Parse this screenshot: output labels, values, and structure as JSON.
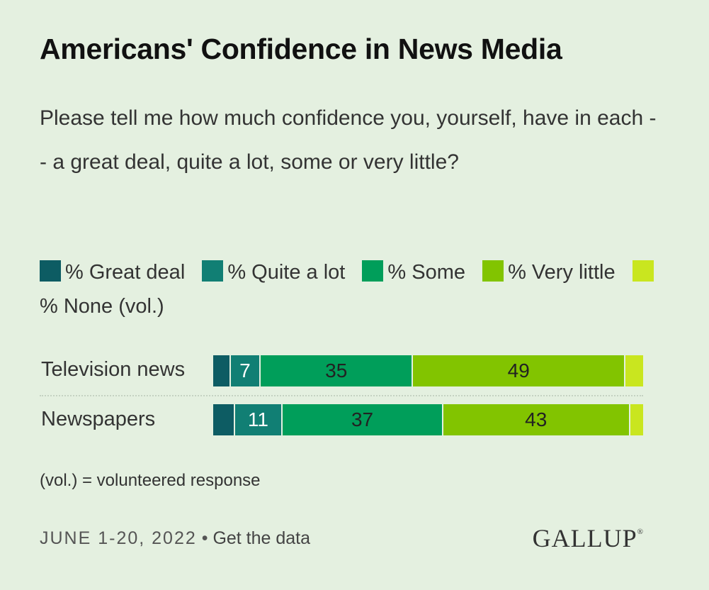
{
  "title": "Americans' Confidence in News Media",
  "subtitle": "Please tell me how much confidence you, yourself, have in each -- a great deal, quite a lot, some or very little?",
  "footnote": "(vol.) = volunteered response",
  "footer": {
    "date": "JUNE 1-20, 2022",
    "separator": " • ",
    "link": "Get the data",
    "brand": "GALLUP",
    "brand_mark": "®"
  },
  "chart_data": {
    "type": "bar",
    "orientation": "horizontal",
    "stacked": true,
    "categories": [
      "Television news",
      "Newspapers"
    ],
    "series": [
      {
        "name": "% Great deal",
        "color": "#0d5c63",
        "values": [
          4,
          5
        ],
        "labels": [
          "",
          ""
        ]
      },
      {
        "name": "% Quite a lot",
        "color": "#117f74",
        "values": [
          7,
          11
        ],
        "labels": [
          "7",
          "11"
        ]
      },
      {
        "name": "% Some",
        "color": "#009e5a",
        "values": [
          35,
          37
        ],
        "labels": [
          "35",
          "37"
        ]
      },
      {
        "name": "% Very little",
        "color": "#82c400",
        "values": [
          49,
          43
        ],
        "labels": [
          "49",
          "43"
        ]
      },
      {
        "name": "% None (vol.)",
        "color": "#c9e61f",
        "values": [
          4,
          3
        ],
        "labels": [
          "",
          ""
        ]
      }
    ],
    "label_colors": [
      "#ffffff",
      "#ffffff",
      "#222222",
      "#222222",
      "#222222"
    ],
    "legend_position": "top",
    "grid": false
  }
}
